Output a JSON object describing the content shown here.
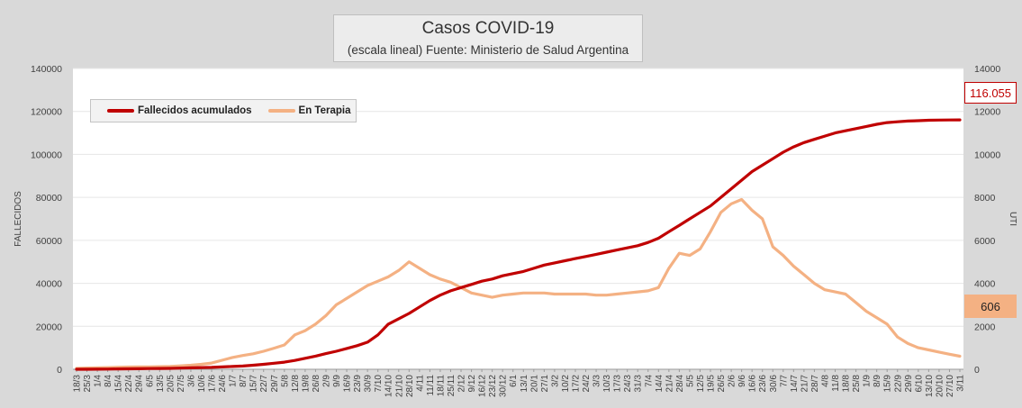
{
  "title": "Casos COVID-19",
  "subtitle": "(escala lineal) Fuente: Ministerio de Salud Argentina",
  "colors": {
    "deaths": "#c00000",
    "icu": "#f4b183",
    "background": "#d9d9d9",
    "plot_background": "#ffffff",
    "grid": "#e6e6e6"
  },
  "callouts": {
    "deaths_last": "116.055",
    "icu_last": "606"
  },
  "chart_data": {
    "type": "line",
    "title": "Casos COVID-19",
    "subtitle": "(escala lineal) Fuente: Ministerio de Salud Argentina",
    "ylabel": "FALLECIDOS",
    "y2label": "UTI",
    "ylim": [
      0,
      140000
    ],
    "y2lim": [
      0,
      14000
    ],
    "yticks": [
      "0",
      "20000",
      "40000",
      "60000",
      "80000",
      "100000",
      "120000",
      "140000"
    ],
    "y2ticks": [
      "0",
      "2000",
      "4000",
      "6000",
      "8000",
      "10000",
      "12000",
      "14000"
    ],
    "grid": true,
    "legend_position": "top-left",
    "categories": [
      "18/3",
      "25/3",
      "1/4",
      "8/4",
      "15/4",
      "22/4",
      "29/4",
      "6/5",
      "13/5",
      "20/5",
      "27/5",
      "3/6",
      "10/6",
      "17/6",
      "24/6",
      "1/7",
      "8/7",
      "15/7",
      "22/7",
      "29/7",
      "5/8",
      "12/8",
      "19/8",
      "26/8",
      "2/9",
      "9/9",
      "16/9",
      "23/9",
      "30/9",
      "7/10",
      "14/10",
      "21/10",
      "28/10",
      "4/11",
      "11/11",
      "18/11",
      "25/11",
      "2/12",
      "9/12",
      "16/12",
      "23/12",
      "30/12",
      "6/1",
      "13/1",
      "20/1",
      "27/1",
      "3/2",
      "10/2",
      "17/2",
      "24/2",
      "3/3",
      "10/3",
      "17/3",
      "24/3",
      "31/3",
      "7/4",
      "14/4",
      "21/4",
      "28/4",
      "5/5",
      "12/5",
      "19/5",
      "26/5",
      "2/6",
      "9/6",
      "16/6",
      "23/6",
      "30/6",
      "7/7",
      "14/7",
      "21/7",
      "28/7",
      "4/8",
      "11/8",
      "18/8",
      "25/8",
      "1/9",
      "8/9",
      "15/9",
      "22/9",
      "29/9",
      "6/10",
      "13/10",
      "20/10",
      "27/10",
      "3/11"
    ],
    "series": [
      {
        "name": "Fallecidos acumulados",
        "axis": "left",
        "values": [
          0,
          20,
          50,
          80,
          160,
          210,
          260,
          340,
          370,
          430,
          540,
          690,
          800,
          900,
          1100,
          1300,
          1500,
          1900,
          2300,
          2800,
          3300,
          4100,
          5100,
          6100,
          7300,
          8400,
          9700,
          11000,
          12600,
          16000,
          21000,
          23500,
          26000,
          29000,
          32000,
          34500,
          36500,
          38000,
          39500,
          41000,
          42000,
          43500,
          44500,
          45500,
          47000,
          48500,
          49500,
          50500,
          51500,
          52500,
          53500,
          54500,
          55500,
          56500,
          57500,
          59000,
          61000,
          64000,
          67000,
          70000,
          73000,
          76000,
          80000,
          84000,
          88000,
          92000,
          95000,
          98000,
          101000,
          103500,
          105500,
          107000,
          108500,
          110000,
          111000,
          112000,
          113000,
          114000,
          114800,
          115200,
          115500,
          115700,
          115900,
          116000,
          116020,
          116055
        ]
      },
      {
        "name": "En Terapia",
        "axis": "right",
        "values": [
          40,
          60,
          70,
          80,
          95,
          105,
          110,
          115,
          120,
          130,
          160,
          190,
          230,
          290,
          420,
          550,
          640,
          720,
          840,
          980,
          1130,
          1600,
          1800,
          2100,
          2500,
          3000,
          3300,
          3600,
          3900,
          4100,
          4300,
          4600,
          5000,
          4700,
          4400,
          4200,
          4050,
          3800,
          3550,
          3450,
          3350,
          3450,
          3500,
          3550,
          3550,
          3550,
          3500,
          3500,
          3500,
          3500,
          3450,
          3450,
          3500,
          3550,
          3600,
          3650,
          3800,
          4700,
          5400,
          5300,
          5600,
          6400,
          7300,
          7700,
          7900,
          7400,
          7000,
          5700,
          5300,
          4800,
          4400,
          4000,
          3700,
          3600,
          3500,
          3100,
          2700,
          2400,
          2100,
          1500,
          1200,
          1000,
          900,
          800,
          700,
          606
        ]
      }
    ]
  }
}
